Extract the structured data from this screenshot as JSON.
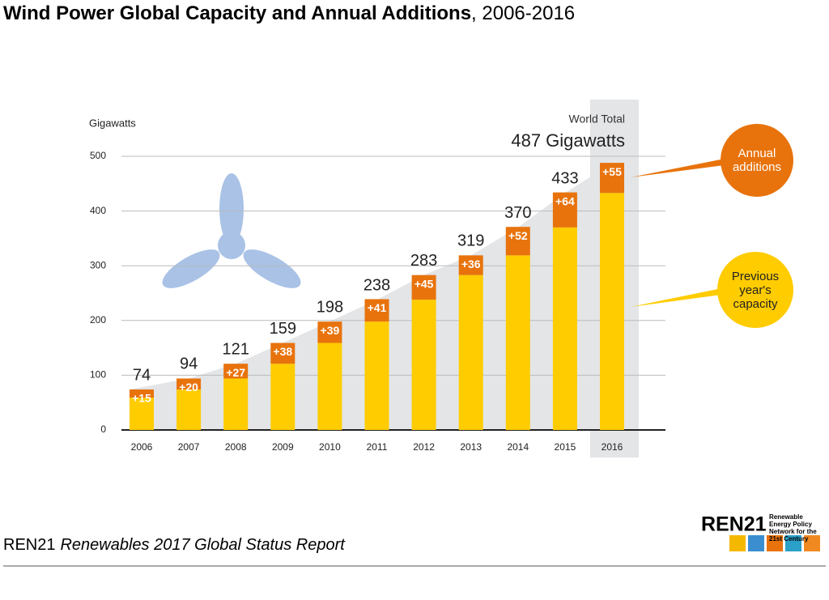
{
  "chart_data": {
    "type": "stacked-bar",
    "title": "Wind Power Global Capacity and Annual Additions",
    "title_suffix": ", 2006-2016",
    "y_label": "Gigawatts",
    "categories": [
      "2006",
      "2007",
      "2008",
      "2009",
      "2010",
      "2011",
      "2012",
      "2013",
      "2014",
      "2015",
      "2016"
    ],
    "series": [
      {
        "name": "Previous year's capacity",
        "color": "#ffcc00",
        "values": [
          59,
          74,
          94,
          121,
          159,
          198,
          238,
          283,
          319,
          370,
          433
        ]
      },
      {
        "name": "Annual additions",
        "color": "#e8730c",
        "values": [
          15,
          20,
          27,
          38,
          39,
          41,
          45,
          36,
          52,
          64,
          55
        ],
        "value_labels": [
          "+15",
          "+20",
          "+27",
          "+38",
          "+39",
          "+41",
          "+45",
          "+36",
          "+52",
          "+64",
          "+55"
        ]
      }
    ],
    "totals": [
      74,
      94,
      121,
      159,
      198,
      238,
      283,
      319,
      370,
      433,
      487
    ],
    "ylim": [
      0,
      500
    ],
    "yticks": [
      0,
      100,
      200,
      300,
      400,
      500
    ],
    "grid": true,
    "annotation_heading": "World Total",
    "annotation": "487 Gigawatts"
  },
  "footer": {
    "org": "REN21",
    "report": "Renewables 2017 Global Status Report"
  },
  "logo": {
    "name": "REN21",
    "tagline": "Renewable Energy Policy Network for the 21st Century"
  }
}
